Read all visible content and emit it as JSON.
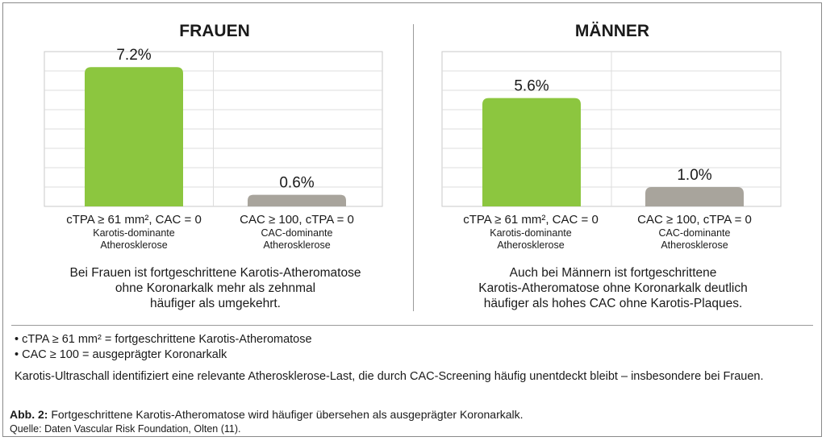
{
  "panels": [
    {
      "title": "FRAUEN",
      "categories": [
        {
          "main": "cTPA ≥ 61 mm², CAC = 0",
          "sub1": "Karotis-dominante",
          "sub2": "Atherosklerose"
        },
        {
          "main": "CAC ≥ 100, cTPA = 0",
          "sub1": "CAC-dominante",
          "sub2": "Atherosklerose"
        }
      ],
      "description": [
        "Bei Frauen ist fortgeschrittene Karotis-Atheromatose",
        "ohne Koronarkalk mehr als zehnmal",
        "häufiger als umgekehrt."
      ]
    },
    {
      "title": "MÄNNER",
      "categories": [
        {
          "main": "cTPA ≥ 61 mm², CAC = 0",
          "sub1": "Karotis-dominante",
          "sub2": "Atherosklerose"
        },
        {
          "main": "CAC ≥ 100, cTPA = 0",
          "sub1": "CAC-dominante",
          "sub2": "Atherosklerose"
        }
      ],
      "description": [
        "Auch bei Männern ist fortgeschrittene",
        "Karotis-Atheromatose ohne Koronarkalk deutlich",
        "häufiger als hohes CAC ohne Karotis-Plaques."
      ]
    }
  ],
  "chart_data": [
    {
      "type": "bar",
      "title": "FRAUEN",
      "categories": [
        "cTPA ≥ 61 mm², CAC = 0",
        "CAC ≥ 100, cTPA = 0"
      ],
      "values": [
        7.2,
        0.6
      ],
      "data_labels": [
        "7.2%",
        "0.6%"
      ],
      "colors": [
        "#8cc63f",
        "#a8a49c"
      ],
      "ylim": [
        0,
        8
      ],
      "grid": true
    },
    {
      "type": "bar",
      "title": "MÄNNER",
      "categories": [
        "cTPA ≥ 61 mm², CAC = 0",
        "CAC ≥ 100, cTPA = 0"
      ],
      "values": [
        5.6,
        1.0
      ],
      "data_labels": [
        "5.6%",
        "1.0%"
      ],
      "colors": [
        "#8cc63f",
        "#a8a49c"
      ],
      "ylim": [
        0,
        8
      ],
      "grid": true
    }
  ],
  "notes": [
    "• cTPA ≥ 61 mm² = fortgeschrittene Karotis-Atheromatose",
    "• CAC ≥ 100 = ausgeprägter Koronarkalk"
  ],
  "summary": "Karotis-Ultraschall identifiziert eine relevante Atherosklerose-Last, die durch CAC-Screening häufig unentdeckt bleibt – insbesondere bei Frauen.",
  "caption": {
    "label": "Abb. 2:",
    "text": " Fortgeschrittene Karotis-Atheromatose wird häufiger übersehen als ausgeprägter Koronarkalk."
  },
  "source": "Quelle: Daten Vascular Risk Foundation, Olten (11)."
}
